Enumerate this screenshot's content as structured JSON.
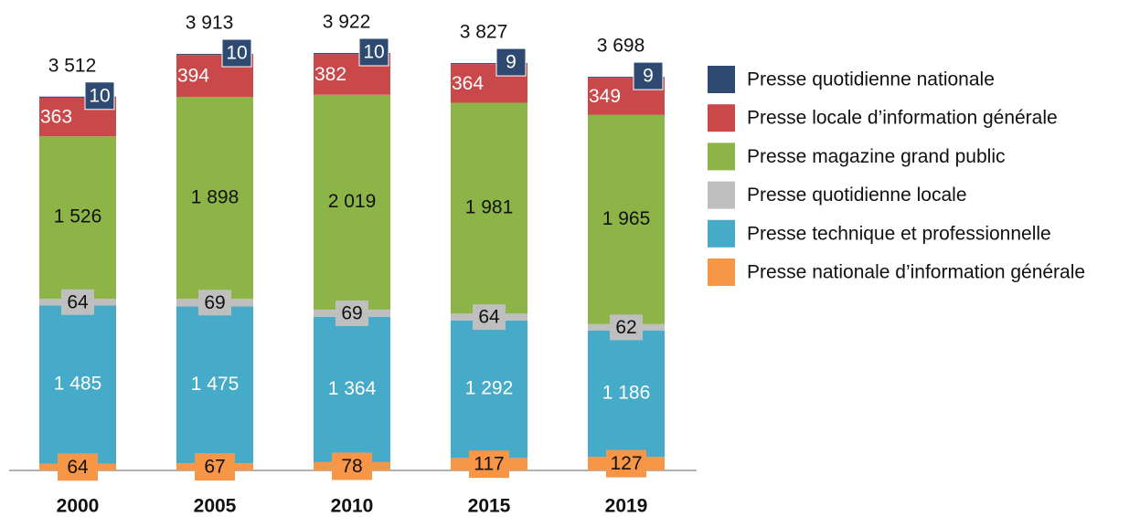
{
  "chart_data": {
    "type": "stacked_bar",
    "categories": [
      "2000",
      "2005",
      "2010",
      "2015",
      "2019"
    ],
    "series": [
      {
        "name": "Presse nationale d’information générale",
        "color": "#f79646",
        "values": [
          64,
          67,
          78,
          117,
          127
        ]
      },
      {
        "name": "Presse technique et professionnelle",
        "color": "#46abc8",
        "values": [
          1485,
          1475,
          1364,
          1292,
          1186
        ],
        "value_labels": [
          "1 485",
          "1 475",
          "1 364",
          "1 292",
          "1 186"
        ]
      },
      {
        "name": "Presse quotidienne locale",
        "color": "#bfbfbf",
        "values": [
          64,
          69,
          69,
          64,
          62
        ]
      },
      {
        "name": "Presse magazine grand public",
        "color": "#8db446",
        "values": [
          1526,
          1898,
          2019,
          1981,
          1965
        ],
        "value_labels": [
          "1 526",
          "1 898",
          "2 019",
          "1 981",
          "1 965"
        ]
      },
      {
        "name": "Presse locale d’information générale",
        "color": "#c9494b",
        "values": [
          363,
          394,
          382,
          364,
          349
        ]
      },
      {
        "name": "Presse quotidienne nationale",
        "color": "#2e4a70",
        "values": [
          10,
          10,
          10,
          9,
          9
        ]
      }
    ],
    "totals": [
      3512,
      3913,
      3922,
      3827,
      3698
    ],
    "total_labels": [
      "3 512",
      "3 913",
      "3 922",
      "3 827",
      "3 698"
    ]
  }
}
